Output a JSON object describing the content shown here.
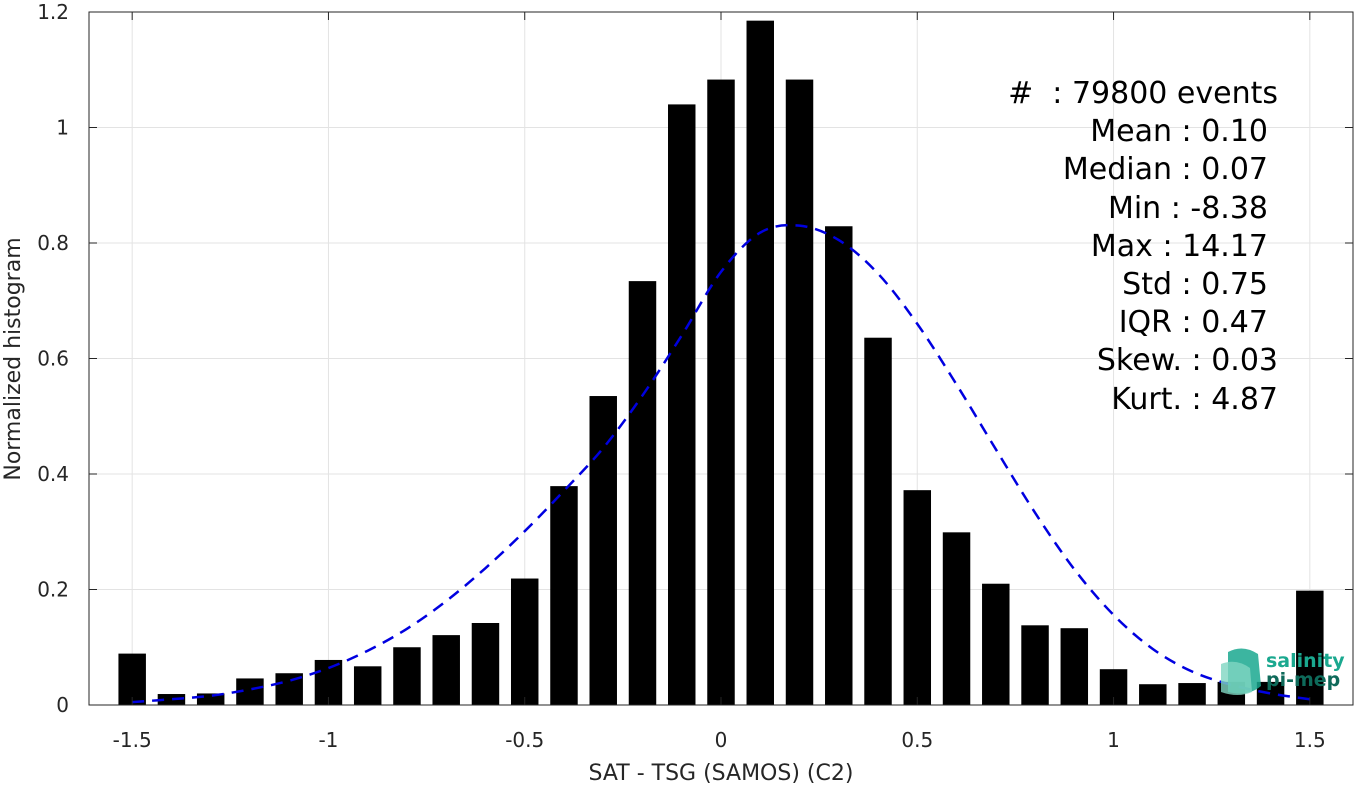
{
  "chart_data": {
    "type": "bar",
    "xlabel": "SAT - TSG (SAMOS) (C2)",
    "ylabel": "Normalized histogram",
    "xlim": [
      -1.61,
      1.61
    ],
    "ylim": [
      0,
      1.2
    ],
    "xticks": [
      -1.5,
      -1,
      -0.5,
      0,
      0.5,
      1,
      1.5
    ],
    "xtick_labels": [
      "-1.5",
      "-1",
      "-0.5",
      "0",
      "0.5",
      "1",
      "1.5"
    ],
    "yticks": [
      0,
      0.2,
      0.4,
      0.6,
      0.8,
      1,
      1.2
    ],
    "ytick_labels": [
      "0",
      "0.2",
      "0.4",
      "0.6",
      "0.8",
      "1",
      "1.2"
    ],
    "grid": true,
    "bar_width": 0.07,
    "bar_color": "#000000",
    "x": [
      -1.5,
      -1.4,
      -1.3,
      -1.2,
      -1.1,
      -1.0,
      -0.9,
      -0.8,
      -0.7,
      -0.6,
      -0.5,
      -0.4,
      -0.3,
      -0.2,
      -0.1,
      0.0,
      0.1,
      0.2,
      0.3,
      0.4,
      0.5,
      0.6,
      0.7,
      0.8,
      0.9,
      1.0,
      1.1,
      1.2,
      1.3,
      1.4,
      1.5
    ],
    "values": [
      0.089,
      0.019,
      0.02,
      0.046,
      0.055,
      0.078,
      0.067,
      0.1,
      0.121,
      0.142,
      0.219,
      0.379,
      0.535,
      0.734,
      1.04,
      1.083,
      1.185,
      1.083,
      0.829,
      0.636,
      0.372,
      0.299,
      0.21,
      0.138,
      0.133,
      0.062,
      0.036,
      0.038,
      0.04,
      0.04,
      0.198
    ],
    "fit": {
      "style": "dashed",
      "color": "#0000e0",
      "x": [
        -1.5,
        -1.4,
        -1.3,
        -1.2,
        -1.1,
        -1.0,
        -0.9,
        -0.8,
        -0.7,
        -0.6,
        -0.5,
        -0.4,
        -0.3,
        -0.2,
        -0.1,
        0.0,
        0.1,
        0.2,
        0.3,
        0.4,
        0.5,
        0.6,
        0.7,
        0.8,
        0.9,
        1.0,
        1.1,
        1.2,
        1.3,
        1.4,
        1.5
      ],
      "y": [
        0.005,
        0.01,
        0.016,
        0.027,
        0.042,
        0.064,
        0.094,
        0.132,
        0.18,
        0.237,
        0.301,
        0.371,
        0.445,
        0.536,
        0.64,
        0.75,
        0.818,
        0.83,
        0.805,
        0.747,
        0.66,
        0.555,
        0.443,
        0.333,
        0.235,
        0.156,
        0.097,
        0.058,
        0.035,
        0.02,
        0.01
      ]
    }
  },
  "stats": {
    "events": "#  : 79800 events",
    "mean": "Mean : 0.10",
    "median": "Median : 0.07",
    "min": "Min : -8.38",
    "max": "Max : 14.17",
    "std": "Std : 0.75",
    "iqr": "IQR : 0.47",
    "skew": "Skew. : 0.03",
    "kurt": "Kurt. : 4.87"
  },
  "logo": {
    "line1": "salinity",
    "line2": "pi-mep"
  }
}
